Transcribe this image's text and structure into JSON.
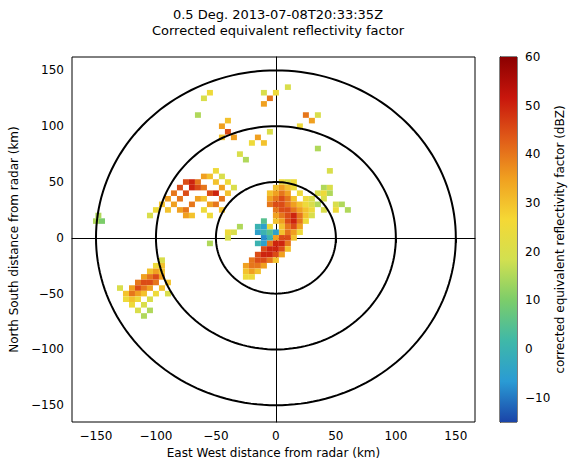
{
  "chart_data": {
    "type": "radar_ppi",
    "title": "0.5 Deg. 2013-07-08T20:33:35Z",
    "subtitle": "Corrected equivalent reflectivity factor",
    "x_label": "East West distance from radar (km)",
    "y_label": "North South distance from radar (km)",
    "xlim": [
      -170,
      166
    ],
    "ylim": [
      -165,
      162
    ],
    "xticks": [
      {
        "value": -150,
        "label": "−150"
      },
      {
        "value": -100,
        "label": "−100"
      },
      {
        "value": -50,
        "label": "−50"
      },
      0,
      50,
      100,
      150
    ],
    "yticks": [
      {
        "value": -150,
        "label": "−150"
      },
      {
        "value": -100,
        "label": "−100"
      },
      {
        "value": -50,
        "label": "−50"
      },
      0,
      50,
      100,
      150
    ],
    "grid": false,
    "range_rings": [
      50,
      100,
      150
    ],
    "cell_size": 5,
    "cells": [
      [
        5,
        50,
        25
      ],
      [
        10,
        50,
        20
      ],
      [
        15,
        50,
        25
      ],
      [
        0,
        45,
        30
      ],
      [
        5,
        45,
        35
      ],
      [
        10,
        45,
        30
      ],
      [
        15,
        45,
        25
      ],
      [
        40,
        45,
        15
      ],
      [
        45,
        45,
        20
      ],
      [
        -5,
        40,
        30
      ],
      [
        0,
        40,
        35
      ],
      [
        5,
        40,
        40
      ],
      [
        10,
        40,
        35
      ],
      [
        20,
        40,
        25
      ],
      [
        35,
        40,
        20
      ],
      [
        40,
        40,
        25
      ],
      [
        45,
        40,
        15
      ],
      [
        -5,
        35,
        35
      ],
      [
        0,
        35,
        40
      ],
      [
        5,
        35,
        45
      ],
      [
        10,
        35,
        40
      ],
      [
        15,
        35,
        30
      ],
      [
        25,
        35,
        25
      ],
      [
        30,
        35,
        20
      ],
      [
        40,
        35,
        20
      ],
      [
        -5,
        30,
        40
      ],
      [
        0,
        30,
        45
      ],
      [
        5,
        30,
        45
      ],
      [
        10,
        30,
        40
      ],
      [
        15,
        30,
        35
      ],
      [
        20,
        30,
        30
      ],
      [
        25,
        30,
        25
      ],
      [
        30,
        30,
        20
      ],
      [
        35,
        30,
        15
      ],
      [
        50,
        30,
        20
      ],
      [
        55,
        30,
        15
      ],
      [
        0,
        25,
        40
      ],
      [
        5,
        25,
        45
      ],
      [
        10,
        25,
        45
      ],
      [
        15,
        25,
        40
      ],
      [
        20,
        25,
        35
      ],
      [
        25,
        25,
        30
      ],
      [
        30,
        25,
        25
      ],
      [
        40,
        25,
        20
      ],
      [
        50,
        25,
        25
      ],
      [
        60,
        25,
        15
      ],
      [
        0,
        20,
        35
      ],
      [
        5,
        20,
        40
      ],
      [
        10,
        20,
        45
      ],
      [
        15,
        20,
        50
      ],
      [
        20,
        20,
        40
      ],
      [
        25,
        20,
        30
      ],
      [
        30,
        20,
        20
      ],
      [
        0,
        15,
        30
      ],
      [
        5,
        15,
        35
      ],
      [
        10,
        15,
        45
      ],
      [
        15,
        15,
        50
      ],
      [
        20,
        15,
        40
      ],
      [
        25,
        15,
        25
      ],
      [
        -10,
        15,
        5
      ],
      [
        -5,
        10,
        25
      ],
      [
        5,
        10,
        30
      ],
      [
        10,
        10,
        40
      ],
      [
        15,
        10,
        45
      ],
      [
        20,
        10,
        35
      ],
      [
        -15,
        10,
        0
      ],
      [
        -10,
        10,
        -5
      ],
      [
        5,
        5,
        30
      ],
      [
        10,
        5,
        40
      ],
      [
        15,
        5,
        35
      ],
      [
        20,
        5,
        25
      ],
      [
        -15,
        5,
        -5
      ],
      [
        -10,
        5,
        0
      ],
      [
        -5,
        5,
        5
      ],
      [
        0,
        5,
        -5
      ],
      [
        0,
        0,
        35
      ],
      [
        5,
        0,
        45
      ],
      [
        10,
        0,
        45
      ],
      [
        15,
        0,
        30
      ],
      [
        -10,
        0,
        -8
      ],
      [
        -5,
        0,
        0
      ],
      [
        -5,
        -5,
        40
      ],
      [
        0,
        -5,
        50
      ],
      [
        5,
        -5,
        50
      ],
      [
        10,
        -5,
        40
      ],
      [
        -10,
        -5,
        -5
      ],
      [
        -15,
        -5,
        0
      ],
      [
        -10,
        -10,
        45
      ],
      [
        -5,
        -10,
        50
      ],
      [
        0,
        -10,
        50
      ],
      [
        5,
        -10,
        45
      ],
      [
        10,
        -10,
        30
      ],
      [
        -15,
        -15,
        45
      ],
      [
        -10,
        -15,
        50
      ],
      [
        -5,
        -15,
        50
      ],
      [
        0,
        -15,
        45
      ],
      [
        5,
        -15,
        35
      ],
      [
        -20,
        -20,
        40
      ],
      [
        -15,
        -20,
        45
      ],
      [
        -10,
        -20,
        45
      ],
      [
        -5,
        -20,
        40
      ],
      [
        0,
        -20,
        30
      ],
      [
        -25,
        -25,
        35
      ],
      [
        -20,
        -25,
        40
      ],
      [
        -15,
        -25,
        40
      ],
      [
        -10,
        -25,
        35
      ],
      [
        -25,
        -30,
        30
      ],
      [
        -20,
        -30,
        35
      ],
      [
        -15,
        -30,
        30
      ],
      [
        -25,
        -35,
        25
      ],
      [
        -20,
        -35,
        25
      ],
      [
        -100,
        25,
        25
      ],
      [
        -95,
        30,
        30
      ],
      [
        -90,
        35,
        35
      ],
      [
        -85,
        40,
        40
      ],
      [
        -80,
        45,
        45
      ],
      [
        -75,
        50,
        45
      ],
      [
        -70,
        50,
        50
      ],
      [
        -65,
        50,
        40
      ],
      [
        -60,
        55,
        35
      ],
      [
        -55,
        55,
        30
      ],
      [
        -50,
        50,
        30
      ],
      [
        -45,
        45,
        35
      ],
      [
        -40,
        40,
        30
      ],
      [
        -90,
        25,
        30
      ],
      [
        -85,
        30,
        35
      ],
      [
        -80,
        35,
        40
      ],
      [
        -75,
        40,
        45
      ],
      [
        -70,
        45,
        50
      ],
      [
        -65,
        45,
        45
      ],
      [
        -60,
        45,
        40
      ],
      [
        -55,
        40,
        45
      ],
      [
        -50,
        40,
        50
      ],
      [
        -45,
        35,
        40
      ],
      [
        -80,
        25,
        35
      ],
      [
        -75,
        25,
        40
      ],
      [
        -70,
        30,
        40
      ],
      [
        -65,
        35,
        35
      ],
      [
        -60,
        35,
        30
      ],
      [
        -55,
        30,
        35
      ],
      [
        -50,
        30,
        40
      ],
      [
        -45,
        25,
        30
      ],
      [
        -75,
        20,
        35
      ],
      [
        -70,
        20,
        30
      ],
      [
        -60,
        25,
        25
      ],
      [
        -55,
        20,
        25
      ],
      [
        -105,
        20,
        20
      ],
      [
        -50,
        60,
        25
      ],
      [
        -45,
        55,
        20
      ],
      [
        -40,
        50,
        25
      ],
      [
        -35,
        45,
        20
      ],
      [
        -40,
        5,
        25
      ],
      [
        -35,
        5,
        20
      ],
      [
        -40,
        0,
        20
      ],
      [
        -30,
        10,
        15
      ],
      [
        -55,
        -5,
        15
      ],
      [
        -95,
        -20,
        20
      ],
      [
        -100,
        -25,
        25
      ],
      [
        -95,
        -25,
        30
      ],
      [
        -105,
        -30,
        30
      ],
      [
        -100,
        -30,
        35
      ],
      [
        -95,
        -30,
        30
      ],
      [
        -110,
        -35,
        35
      ],
      [
        -105,
        -35,
        40
      ],
      [
        -100,
        -35,
        45
      ],
      [
        -95,
        -35,
        35
      ],
      [
        -115,
        -40,
        40
      ],
      [
        -110,
        -40,
        45
      ],
      [
        -105,
        -40,
        45
      ],
      [
        -100,
        -40,
        40
      ],
      [
        -90,
        -40,
        30
      ],
      [
        -120,
        -45,
        35
      ],
      [
        -115,
        -45,
        45
      ],
      [
        -110,
        -45,
        40
      ],
      [
        -105,
        -45,
        35
      ],
      [
        -95,
        -45,
        30
      ],
      [
        -125,
        -50,
        30
      ],
      [
        -120,
        -50,
        40
      ],
      [
        -115,
        -50,
        35
      ],
      [
        -110,
        -50,
        30
      ],
      [
        -100,
        -50,
        25
      ],
      [
        -125,
        -55,
        25
      ],
      [
        -120,
        -55,
        30
      ],
      [
        -115,
        -55,
        25
      ],
      [
        -105,
        -55,
        20
      ],
      [
        -120,
        -60,
        25
      ],
      [
        -110,
        -60,
        20
      ],
      [
        -115,
        -65,
        20
      ],
      [
        -105,
        -65,
        15
      ],
      [
        -110,
        -70,
        15
      ],
      [
        -130,
        -45,
        20
      ],
      [
        -90,
        -50,
        20
      ],
      [
        -45,
        100,
        35
      ],
      [
        -40,
        95,
        45
      ],
      [
        -35,
        90,
        35
      ],
      [
        -45,
        90,
        30
      ],
      [
        -40,
        105,
        30
      ],
      [
        -15,
        90,
        35
      ],
      [
        -10,
        85,
        30
      ],
      [
        -20,
        85,
        25
      ],
      [
        -5,
        125,
        40
      ],
      [
        -10,
        120,
        35
      ],
      [
        0,
        130,
        25
      ],
      [
        -10,
        130,
        20
      ],
      [
        25,
        110,
        40
      ],
      [
        30,
        105,
        35
      ],
      [
        20,
        100,
        25
      ],
      [
        35,
        110,
        20
      ],
      [
        -55,
        130,
        25
      ],
      [
        -60,
        125,
        20
      ],
      [
        -5,
        95,
        20
      ],
      [
        10,
        135,
        20
      ],
      [
        -25,
        70,
        15
      ],
      [
        -30,
        75,
        20
      ],
      [
        -65,
        110,
        15
      ],
      [
        35,
        80,
        15
      ],
      [
        45,
        60,
        20
      ],
      [
        -148,
        20,
        15
      ],
      [
        -150,
        15,
        15
      ],
      [
        -145,
        15,
        10
      ]
    ],
    "colorbar": {
      "label": "corrected equivalent reflectivity factor (dBZ)",
      "range": [
        -15,
        60
      ],
      "ticks": [
        {
          "value": -10,
          "label": "−10"
        },
        0,
        10,
        20,
        30,
        40,
        50,
        60
      ]
    }
  }
}
